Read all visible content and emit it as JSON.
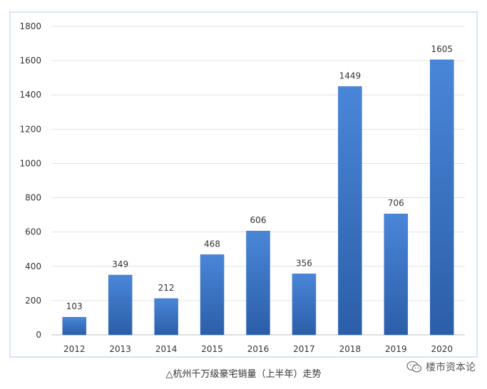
{
  "chart_data": {
    "type": "bar",
    "categories": [
      "2012",
      "2013",
      "2014",
      "2015",
      "2016",
      "2017",
      "2018",
      "2019",
      "2020"
    ],
    "values": [
      103,
      349,
      212,
      468,
      606,
      356,
      1449,
      706,
      1605
    ],
    "ylim": [
      0,
      1800
    ],
    "yticks": [
      0,
      200,
      400,
      600,
      800,
      1000,
      1200,
      1400,
      1600,
      1800
    ],
    "grid": true,
    "bar_color": "#3A73C6",
    "caption": "△杭州千万级豪宅销量（上半年）走势"
  },
  "watermark": {
    "text": "楼市资本论",
    "icon": "wechat-icon"
  }
}
